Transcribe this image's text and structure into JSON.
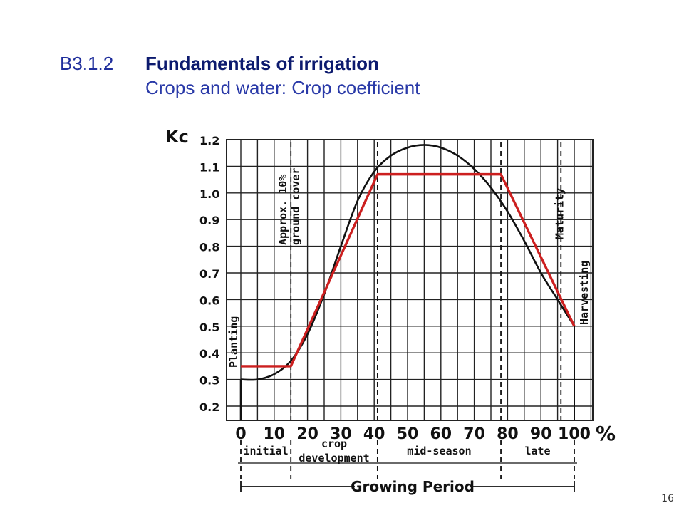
{
  "slide": {
    "code": "B3.1.2",
    "title": "Fundamentals of irrigation",
    "subtitle": "Crops and water: Crop coefficient",
    "page_number": "16"
  },
  "colors": {
    "title_dark": "#0c1a6e",
    "title_blue": "#2a3aa8",
    "curve": "#111111",
    "kc_line": "#cc1f1f",
    "grid": "#222222"
  },
  "chart_data": {
    "type": "line",
    "ylabel": "Kc",
    "x_unit": "%",
    "xlim": [
      0,
      100
    ],
    "ylim": [
      0.2,
      1.2
    ],
    "x_ticks": [
      0,
      10,
      20,
      30,
      40,
      50,
      60,
      70,
      80,
      90,
      100
    ],
    "y_ticks": [
      1.2,
      1.1,
      1.0,
      0.9,
      0.8,
      0.7,
      0.6,
      0.5,
      0.4,
      0.3,
      0.2
    ],
    "grid": true,
    "series": [
      {
        "style": "curve",
        "x": [
          0,
          5,
          10,
          15,
          20,
          25,
          30,
          35,
          40,
          45,
          50,
          55,
          60,
          65,
          70,
          75,
          80,
          85,
          90,
          95,
          100
        ],
        "y": [
          0.3,
          0.3,
          0.32,
          0.37,
          0.47,
          0.62,
          0.8,
          0.97,
          1.08,
          1.14,
          1.17,
          1.18,
          1.17,
          1.14,
          1.09,
          1.02,
          0.93,
          0.82,
          0.7,
          0.6,
          0.5
        ]
      },
      {
        "style": "kc-stages",
        "x": [
          0,
          15,
          41,
          78,
          100
        ],
        "y": [
          0.35,
          0.35,
          1.07,
          1.07,
          0.5
        ]
      }
    ],
    "stage_markers": [
      {
        "x": 15,
        "label": "Approx. 10% ground cover",
        "lines": [
          "Approx. 10%",
          "ground cover"
        ]
      },
      {
        "x": 41
      },
      {
        "x": 78
      },
      {
        "x": 96,
        "label": "Maturity",
        "lines": [
          "Maturity"
        ]
      }
    ],
    "end_labels": {
      "start": "Planting",
      "end": "Harvesting"
    },
    "stages": [
      {
        "lines": [
          "initial"
        ],
        "from": 0,
        "to": 15
      },
      {
        "lines": [
          "crop",
          "development"
        ],
        "from": 15,
        "to": 41
      },
      {
        "lines": [
          "mid-season"
        ],
        "from": 41,
        "to": 78
      },
      {
        "lines": [
          "late"
        ],
        "from": 78,
        "to": 100
      }
    ],
    "period_label": "Growing Period"
  }
}
